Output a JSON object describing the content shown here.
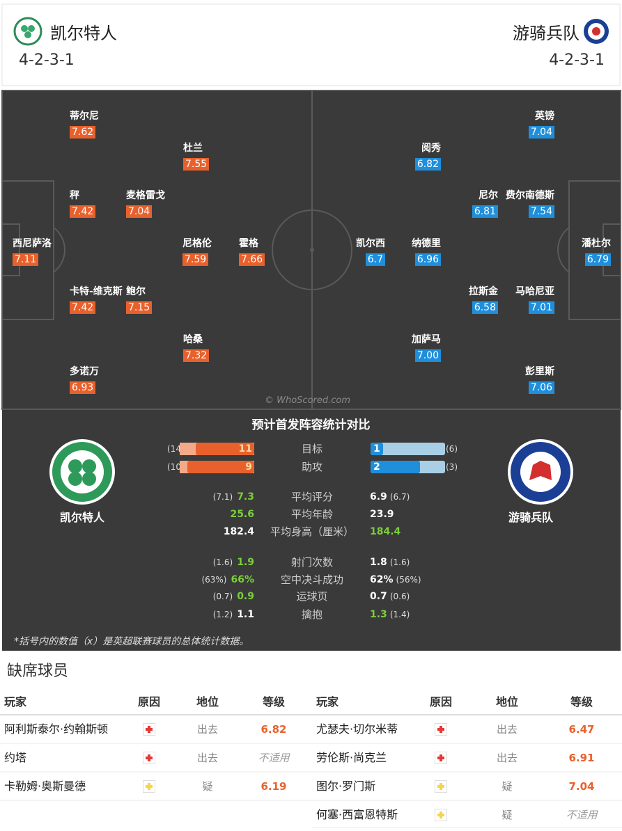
{
  "header": {
    "home": {
      "name": "凯尔特人",
      "formation": "4-2-3-1"
    },
    "away": {
      "name": "游骑兵队",
      "formation": "4-2-3-1"
    }
  },
  "pitch": {
    "watermark": "© WhoScored.com",
    "home": [
      {
        "name": "蒂尔尼",
        "rating": "7.62"
      },
      {
        "name": "杜兰",
        "rating": "7.55"
      },
      {
        "name": "秤",
        "rating": "7.42"
      },
      {
        "name": "麦格雷戈",
        "rating": "7.04"
      },
      {
        "name": "西尼萨洛",
        "rating": "7.11"
      },
      {
        "name": "尼格伦",
        "rating": "7.59"
      },
      {
        "name": "霍格",
        "rating": "7.66"
      },
      {
        "name": "卡特-维克斯",
        "rating": "7.42"
      },
      {
        "name": "鲍尔",
        "rating": "7.15"
      },
      {
        "name": "哈桑",
        "rating": "7.32"
      },
      {
        "name": "多诺万",
        "rating": "6.93"
      }
    ],
    "away": [
      {
        "name": "英镑",
        "rating": "7.04"
      },
      {
        "name": "阅秀",
        "rating": "6.82"
      },
      {
        "name": "尼尔",
        "rating": "6.81"
      },
      {
        "name": "费尔南德斯",
        "rating": "7.54"
      },
      {
        "name": "凯尔西",
        "rating": "6.7"
      },
      {
        "name": "纳德里",
        "rating": "6.96"
      },
      {
        "name": "潘杜尔",
        "rating": "6.79"
      },
      {
        "name": "拉斯金",
        "rating": "6.58"
      },
      {
        "name": "马哈尼亚",
        "rating": "7.01"
      },
      {
        "name": "加萨马",
        "rating": "7.00"
      },
      {
        "name": "彭里斯",
        "rating": "7.06"
      }
    ]
  },
  "comparison": {
    "title": "预计首发阵容统计对比",
    "home_team": "凯尔特人",
    "away_team": "游骑兵队",
    "bars": [
      {
        "label": "目标",
        "home": 11,
        "home_league": {
          "value": 14,
          "label": "(14"
        },
        "away": 1,
        "away_league": {
          "value": 6,
          "label": "(6)"
        }
      },
      {
        "label": "助攻",
        "home": 9,
        "home_league": {
          "value": 10,
          "label": "(10"
        },
        "away": 2,
        "away_league": {
          "value": 3,
          "label": "(3)"
        }
      }
    ],
    "rows": [
      {
        "label": "平均评分",
        "home_league": "(7.1)",
        "home": "7.3",
        "away": "6.9",
        "away_league": "(6.7)",
        "better": "home"
      },
      {
        "label": "平均年龄",
        "home": "25.6",
        "away": "23.9",
        "better": "home"
      },
      {
        "label": "平均身高（厘米）",
        "home": "182.4",
        "away": "184.4",
        "better": "away"
      },
      {
        "label": "射门次数",
        "home_league": "(1.6)",
        "home": "1.9",
        "away": "1.8",
        "away_league": "(1.6)",
        "better": "home"
      },
      {
        "label": "空中决斗成功",
        "home_league": "(63%)",
        "home": "66%",
        "away": "62%",
        "away_league": "(56%)",
        "better": "home"
      },
      {
        "label": "运球页",
        "home_league": "(0.7)",
        "home": "0.9",
        "away": "0.7",
        "away_league": "(0.6)",
        "better": "home"
      },
      {
        "label": "擒抱",
        "home_league": "(1.2)",
        "home": "1.1",
        "away": "1.3",
        "away_league": "(1.4)",
        "better": "away"
      }
    ],
    "footnote": "*括号内的数值（x）是英超联赛球员的总体统计数据。"
  },
  "absent": {
    "title": "缺席球员",
    "columns": [
      "玩家",
      "原因",
      "地位",
      "等级"
    ],
    "home": [
      {
        "player": "阿利斯泰尔·约翰斯顿",
        "reason": "red",
        "status": "出去",
        "rating": "6.82"
      },
      {
        "player": "约塔",
        "reason": "red",
        "status": "出去",
        "rating": "不适用"
      },
      {
        "player": "卡勒姆·奥斯曼德",
        "reason": "yellow",
        "status": "疑",
        "rating": "6.19"
      }
    ],
    "away": [
      {
        "player": "尤瑟夫·切尔米蒂",
        "reason": "red",
        "status": "出去",
        "rating": "6.47"
      },
      {
        "player": "劳伦斯·尚克兰",
        "reason": "red",
        "status": "出去",
        "rating": "6.91"
      },
      {
        "player": "图尔·罗门斯",
        "reason": "yellow",
        "status": "疑",
        "rating": "7.04"
      },
      {
        "player": "何塞·西富恩特斯",
        "reason": "yellow",
        "status": "疑",
        "rating": "不适用"
      }
    ]
  }
}
